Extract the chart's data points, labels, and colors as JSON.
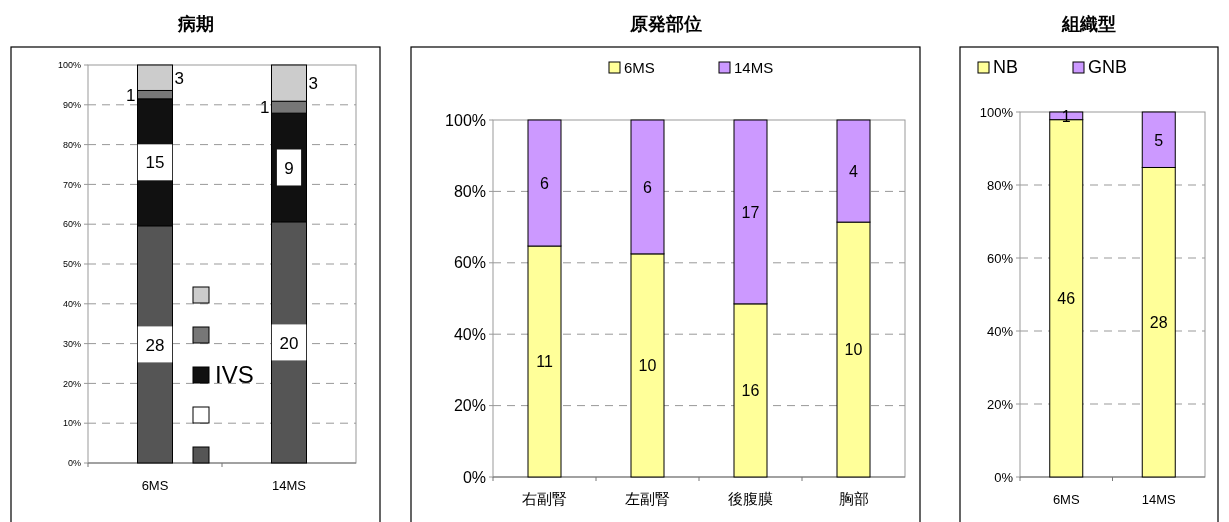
{
  "chart_data": [
    {
      "type": "bar",
      "title": "病期",
      "stacked": true,
      "categories": [
        "6MS",
        "14MS"
      ],
      "ylim": [
        0,
        100
      ],
      "yticks": [
        {
          "value": 0,
          "label": "0%"
        },
        {
          "value": 10,
          "label": "10%"
        },
        {
          "value": 20,
          "label": "20%"
        },
        {
          "value": 30,
          "label": "30%"
        },
        {
          "value": 40,
          "label": "40%"
        },
        {
          "value": 50,
          "label": "50%"
        },
        {
          "value": 60,
          "label": "60%"
        },
        {
          "value": 70,
          "label": "70%"
        },
        {
          "value": 80,
          "label": "80%"
        },
        {
          "value": 90,
          "label": "90%"
        },
        {
          "value": 100,
          "label": "100%"
        }
      ],
      "grid": "y",
      "legend": "bottom",
      "series": [
        {
          "color": "#555555",
          "values": [
            59.6,
            60.6
          ]
        },
        {
          "color": "#ffffff",
          "values": [
            0,
            0
          ]
        },
        {
          "name": "IVS",
          "color": "#111111",
          "values": [
            31.9,
            27.3
          ]
        },
        {
          "color": "#777777",
          "values": [
            2.1,
            3.0
          ]
        },
        {
          "color": "#cccccc",
          "values": [
            6.4,
            9.1
          ]
        }
      ],
      "annotations": [
        "28",
        "15",
        "1",
        "3",
        "20",
        "9",
        "1",
        "3"
      ]
    },
    {
      "type": "bar",
      "title": "原発部位",
      "stacked": true,
      "categories": [
        "右副腎",
        "左副腎",
        "後腹膜",
        "胸部"
      ],
      "ylim": [
        0,
        100
      ],
      "yticks": [
        {
          "value": 0,
          "label": "0%"
        },
        {
          "value": 20,
          "label": "20%"
        },
        {
          "value": 40,
          "label": "40%"
        },
        {
          "value": 60,
          "label": "60%"
        },
        {
          "value": 80,
          "label": "80%"
        },
        {
          "value": 100,
          "label": "100%"
        }
      ],
      "grid": "y",
      "legend": "top",
      "series": [
        {
          "name": "6MS",
          "color": "#ffff99",
          "values": [
            64.7,
            62.5,
            48.5,
            71.4
          ]
        },
        {
          "name": "14MS",
          "color": "#cc99ff",
          "values": [
            35.3,
            37.5,
            51.5,
            28.6
          ]
        }
      ],
      "annotations": [
        "11",
        "6",
        "10",
        "6",
        "16",
        "17",
        "10",
        "4"
      ]
    },
    {
      "type": "bar",
      "title": "組織型",
      "stacked": true,
      "categories": [
        "6MS",
        "14MS"
      ],
      "ylim": [
        0,
        100
      ],
      "yticks": [
        {
          "value": 0,
          "label": "0%"
        },
        {
          "value": 20,
          "label": "20%"
        },
        {
          "value": 40,
          "label": "40%"
        },
        {
          "value": 60,
          "label": "60%"
        },
        {
          "value": 80,
          "label": "80%"
        },
        {
          "value": 100,
          "label": "100%"
        }
      ],
      "grid": "y",
      "legend": "top",
      "series": [
        {
          "name": "NB",
          "color": "#ffff99",
          "values": [
            97.9,
            84.8
          ]
        },
        {
          "name": "GNB",
          "color": "#cc99ff",
          "values": [
            2.1,
            15.2
          ]
        }
      ],
      "annotations": [
        "46",
        "1",
        "28",
        "5"
      ]
    }
  ]
}
